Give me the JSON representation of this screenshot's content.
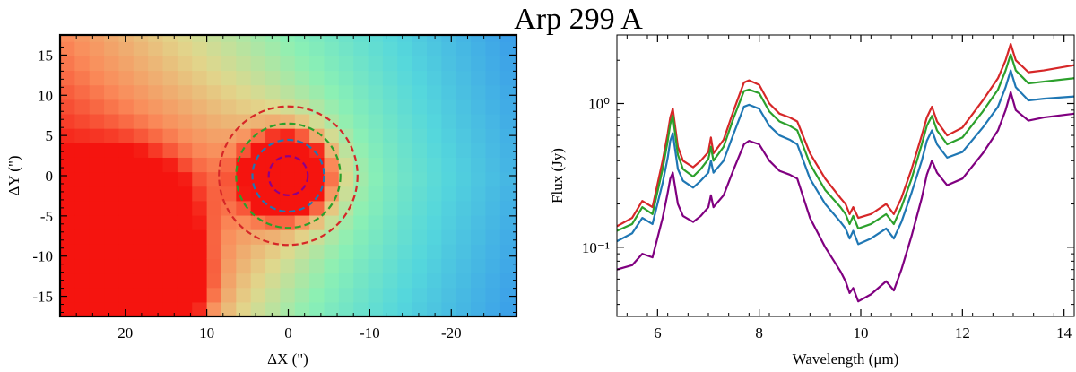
{
  "title": "Arp 299 A",
  "chart_data": [
    {
      "type": "heatmap",
      "xlabel": "ΔX (\")",
      "ylabel": "ΔY (\")",
      "xlim": [
        28,
        -28
      ],
      "ylim": [
        -17.5,
        17.5
      ],
      "xticks": [
        20,
        10,
        0,
        -10,
        -20
      ],
      "xtick_labels": [
        "20",
        "10",
        "0",
        "-10",
        "-20"
      ],
      "yticks": [
        15,
        10,
        5,
        0,
        -5,
        -10,
        -15
      ],
      "ytick_labels": [
        "15",
        "10",
        "5",
        "0",
        "-5",
        "-10",
        "-15"
      ],
      "pixel_size_arcsec": 1.8,
      "sources": [
        {
          "x": 0,
          "y": 0,
          "peak": 1.0,
          "sigma": 3.2
        },
        {
          "x": 20,
          "y": -6,
          "peak": 0.95,
          "sigma": 4.2
        },
        {
          "x": 16,
          "y": -14,
          "peak": 0.7,
          "sigma": 3.4
        },
        {
          "x": 26,
          "y": -12,
          "peak": 0.35,
          "sigma": 4.0
        }
      ],
      "apertures": [
        {
          "radius": 2.4,
          "color": "#8b008b"
        },
        {
          "radius": 4.4,
          "color": "#1f77b4"
        },
        {
          "radius": 6.4,
          "color": "#2ca02c"
        },
        {
          "radius": 8.5,
          "color": "#d62728"
        }
      ]
    },
    {
      "type": "line",
      "xlabel": "Wavelength (μm)",
      "ylabel": "Flux (Jy)",
      "xlim": [
        5.2,
        14.2
      ],
      "ylim": [
        0.033,
        3.0
      ],
      "yscale": "log",
      "xticks": [
        6,
        8,
        10,
        12,
        14
      ],
      "xtick_labels": [
        "6",
        "8",
        "10",
        "12",
        "14"
      ],
      "yticks": [
        1.0,
        0.1
      ],
      "ytick_labels": [
        "10⁰",
        "10⁻¹"
      ],
      "x": [
        5.2,
        5.5,
        5.7,
        5.9,
        6.1,
        6.2,
        6.25,
        6.3,
        6.4,
        6.5,
        6.7,
        6.85,
        7.0,
        7.05,
        7.1,
        7.3,
        7.5,
        7.7,
        7.8,
        8.0,
        8.2,
        8.4,
        8.6,
        8.75,
        9.0,
        9.3,
        9.6,
        9.7,
        9.78,
        9.85,
        9.95,
        10.2,
        10.5,
        10.65,
        10.8,
        11.0,
        11.2,
        11.3,
        11.4,
        11.5,
        11.7,
        12.0,
        12.4,
        12.7,
        12.85,
        12.95,
        13.05,
        13.3,
        13.6,
        14.2
      ],
      "series": [
        {
          "color": "#d62728",
          "values": [
            0.14,
            0.16,
            0.21,
            0.19,
            0.4,
            0.62,
            0.8,
            0.92,
            0.5,
            0.4,
            0.36,
            0.4,
            0.46,
            0.58,
            0.45,
            0.56,
            0.9,
            1.4,
            1.45,
            1.35,
            1.0,
            0.85,
            0.8,
            0.75,
            0.45,
            0.3,
            0.22,
            0.2,
            0.17,
            0.19,
            0.16,
            0.17,
            0.2,
            0.17,
            0.22,
            0.35,
            0.6,
            0.8,
            0.95,
            0.75,
            0.6,
            0.68,
            1.05,
            1.5,
            2.0,
            2.6,
            2.0,
            1.65,
            1.7,
            1.85
          ]
        },
        {
          "color": "#2ca02c",
          "values": [
            0.13,
            0.145,
            0.19,
            0.17,
            0.35,
            0.55,
            0.72,
            0.82,
            0.44,
            0.35,
            0.31,
            0.35,
            0.41,
            0.5,
            0.4,
            0.5,
            0.8,
            1.22,
            1.25,
            1.18,
            0.88,
            0.75,
            0.7,
            0.65,
            0.38,
            0.25,
            0.19,
            0.17,
            0.145,
            0.165,
            0.135,
            0.145,
            0.17,
            0.145,
            0.19,
            0.3,
            0.52,
            0.7,
            0.82,
            0.65,
            0.52,
            0.58,
            0.88,
            1.25,
            1.7,
            2.2,
            1.7,
            1.38,
            1.42,
            1.5
          ]
        },
        {
          "color": "#1f77b4",
          "values": [
            0.11,
            0.125,
            0.16,
            0.145,
            0.28,
            0.42,
            0.55,
            0.62,
            0.35,
            0.29,
            0.26,
            0.29,
            0.33,
            0.4,
            0.33,
            0.4,
            0.62,
            0.95,
            0.98,
            0.92,
            0.7,
            0.6,
            0.56,
            0.52,
            0.3,
            0.2,
            0.15,
            0.135,
            0.115,
            0.13,
            0.105,
            0.115,
            0.135,
            0.115,
            0.15,
            0.24,
            0.4,
            0.55,
            0.65,
            0.52,
            0.42,
            0.46,
            0.68,
            0.95,
            1.3,
            1.7,
            1.3,
            1.05,
            1.08,
            1.12
          ]
        },
        {
          "color": "#800080",
          "values": [
            0.07,
            0.075,
            0.09,
            0.085,
            0.16,
            0.24,
            0.3,
            0.33,
            0.2,
            0.165,
            0.15,
            0.165,
            0.19,
            0.23,
            0.19,
            0.23,
            0.35,
            0.52,
            0.55,
            0.52,
            0.4,
            0.34,
            0.32,
            0.3,
            0.16,
            0.1,
            0.068,
            0.058,
            0.048,
            0.052,
            0.042,
            0.047,
            0.058,
            0.05,
            0.07,
            0.12,
            0.22,
            0.32,
            0.4,
            0.33,
            0.27,
            0.3,
            0.45,
            0.65,
            0.9,
            1.2,
            0.9,
            0.76,
            0.8,
            0.85
          ]
        }
      ]
    }
  ]
}
